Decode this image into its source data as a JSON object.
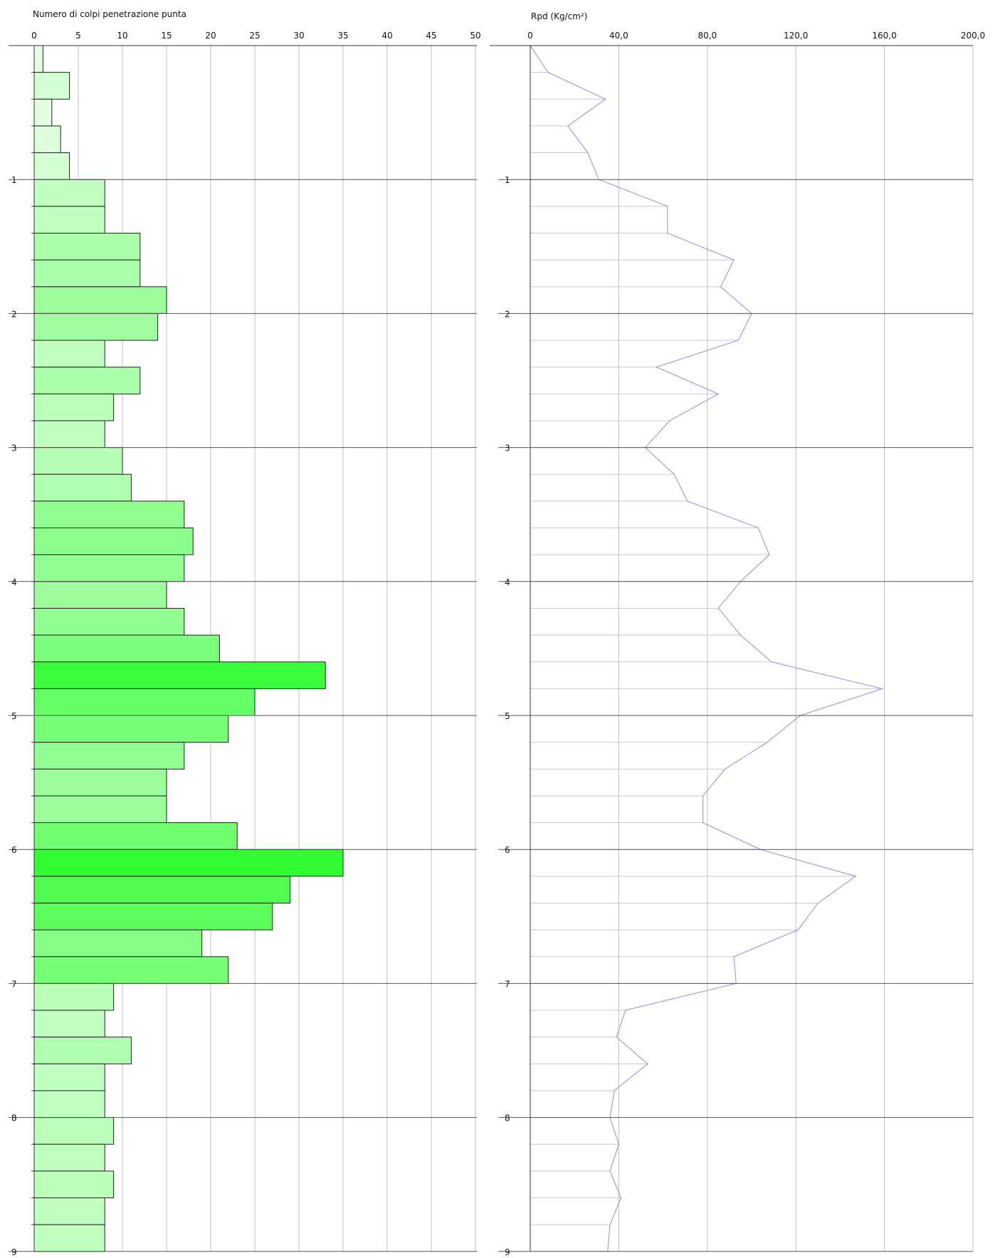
{
  "chart_data": [
    {
      "type": "bar",
      "orientation": "horizontal",
      "title": "Numero di colpi penetrazione punta",
      "x_ticks": [
        "0",
        "5",
        "10",
        "15",
        "20",
        "25",
        "30",
        "35",
        "40",
        "45",
        "50"
      ],
      "xlim": [
        0,
        50
      ],
      "y_ticks": [
        "1",
        "2",
        "3",
        "4",
        "5",
        "6",
        "7",
        "8",
        "9"
      ],
      "ylim": [
        0,
        9
      ],
      "depth_step": 0.2,
      "values": [
        1,
        4,
        2,
        3,
        4,
        8,
        8,
        12,
        12,
        15,
        14,
        8,
        12,
        9,
        8,
        10,
        11,
        17,
        18,
        17,
        15,
        17,
        21,
        33,
        25,
        22,
        17,
        15,
        15,
        23,
        35,
        29,
        27,
        19,
        22,
        9,
        8,
        11,
        8,
        8,
        9,
        8,
        9,
        8,
        8
      ],
      "grid": true
    },
    {
      "type": "line",
      "title": "Rpd (Kg/cm²)",
      "x_ticks": [
        "0",
        "40,0",
        "80,0",
        "120,0",
        "160,0",
        "200,0"
      ],
      "xlim": [
        0,
        200
      ],
      "y_ticks": [
        "1",
        "2",
        "3",
        "4",
        "5",
        "6",
        "7",
        "8",
        "9"
      ],
      "ylim": [
        0,
        9
      ],
      "depth": [
        0,
        0.2,
        0.4,
        0.6,
        0.8,
        1.0,
        1.2,
        1.4,
        1.6,
        1.8,
        2.0,
        2.2,
        2.4,
        2.6,
        2.8,
        3.0,
        3.2,
        3.4,
        3.6,
        3.8,
        4.0,
        4.2,
        4.4,
        4.6,
        4.8,
        5.0,
        5.2,
        5.4,
        5.6,
        5.8,
        6.0,
        6.2,
        6.4,
        6.6,
        6.8,
        7.0,
        7.2,
        7.4,
        7.6,
        7.8,
        8.0,
        8.2,
        8.4,
        8.6,
        8.8,
        9.0
      ],
      "values": [
        0,
        8,
        34,
        17,
        26,
        31,
        62,
        62,
        92,
        86,
        100,
        94,
        57,
        85,
        63,
        52,
        65,
        71,
        103,
        108,
        95,
        85,
        95,
        109,
        159,
        122,
        107,
        88,
        78,
        78,
        104,
        147,
        130,
        121,
        92,
        93,
        43,
        39,
        53,
        38,
        36,
        40,
        36,
        41,
        36,
        35
      ],
      "color": "#a0a0d8",
      "grid": true
    }
  ]
}
